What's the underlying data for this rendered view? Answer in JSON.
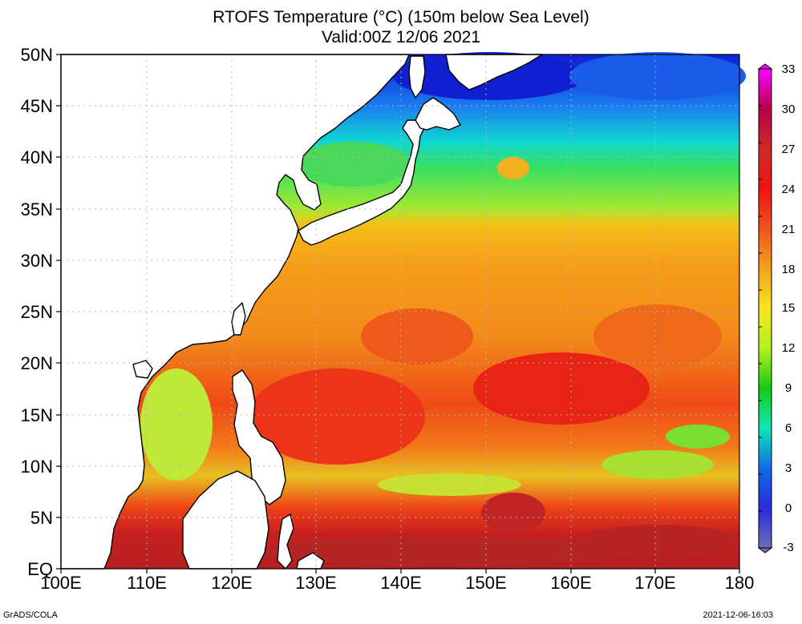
{
  "title": "RTOFS Temperature (°C) (150m below Sea Level)",
  "subtitle": "Valid:00Z 12/06 2021",
  "lat_labels": [
    "50N",
    "45N",
    "40N",
    "35N",
    "30N",
    "25N",
    "20N",
    "15N",
    "10N",
    "5N",
    "EQ"
  ],
  "lon_labels": [
    "100E",
    "110E",
    "120E",
    "130E",
    "140E",
    "150E",
    "160E",
    "170E",
    "180"
  ],
  "colorbar_labels": [
    "33",
    "30",
    "27",
    "24",
    "21",
    "18",
    "15",
    "12",
    "9",
    "6",
    "3",
    "0",
    "-3"
  ],
  "colorbar_colors": [
    "#ff00ff",
    "#b8004a",
    "#ce2a2a",
    "#f01414",
    "#f0541e",
    "#f4a21e",
    "#f6e61e",
    "#b4f01e",
    "#14cc14",
    "#10e6b8",
    "#0f6ee6",
    "#2a2ae0",
    "#6e6ebc"
  ],
  "footer_left": "GrADS/COLA",
  "footer_right": "2021-12-06-16:03"
}
